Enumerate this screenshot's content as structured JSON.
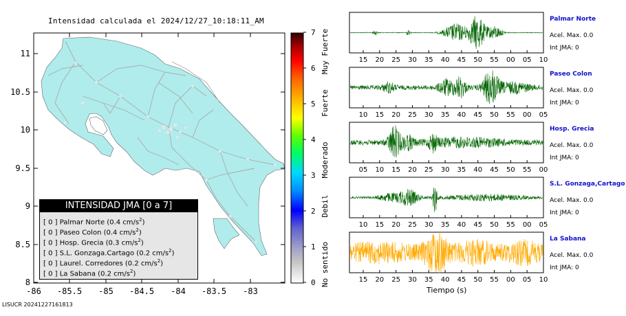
{
  "map": {
    "title": "Intensidad calculada el 2024/12/27_10:18:11_AM",
    "x_ticks": [
      "-86",
      "-85.5",
      "-85",
      "-84.5",
      "-84",
      "-83.5",
      "-83"
    ],
    "y_ticks": [
      "11",
      "10.5",
      "10",
      "9.5",
      "9",
      "8.5",
      "8"
    ],
    "land_color": "#b0ecec",
    "road_color": "#aaaaaa"
  },
  "colorbar": {
    "tick_labels": [
      "0",
      "1",
      "2",
      "3",
      "4",
      "5",
      "6",
      "7"
    ],
    "class_labels": [
      "No sentido",
      "Debil",
      "Moderado",
      "Fuerte",
      "Muy Fuerte"
    ]
  },
  "legend": {
    "header": "INTENSIDAD JMA [0 a 7]",
    "items": [
      {
        "text": "[ 0 ]  Palmar Norte (0.4 cm/s",
        "sup": "2",
        "close": ")"
      },
      {
        "text": "[ 0 ]  Paseo Colon (0.4 cm/s",
        "sup": "2",
        "close": ")"
      },
      {
        "text": "[ 0 ]  Hosp. Grecia (0.3 cm/s",
        "sup": "2",
        "close": ")"
      },
      {
        "text": "[ 0 ]  S.L. Gonzaga.Cartago (0.2 cm/s",
        "sup": "2",
        "close": ")"
      },
      {
        "text": "[ 0 ]  Laurel. Corredores (0.2 cm/s",
        "sup": "2",
        "close": ")"
      },
      {
        "text": "[ 0 ]  La Sabana (0.2 cm/s",
        "sup": "2",
        "close": ")"
      }
    ]
  },
  "footer": "LISUCR 20241227161813",
  "time_axis_label": "Tiempo (s)",
  "stations": [
    {
      "name": "Palmar Norte",
      "acel": "Acel. Max. 0.0",
      "int": "Int JMA: 0",
      "color": "#006400",
      "ticks": [
        "15",
        "20",
        "25",
        "30",
        "35",
        "40",
        "45",
        "50",
        "55",
        "00",
        "05",
        "10"
      ]
    },
    {
      "name": "Paseo Colon",
      "acel": "Acel. Max. 0.0",
      "int": "Int JMA: 0",
      "color": "#006400",
      "ticks": [
        "10",
        "15",
        "20",
        "25",
        "30",
        "35",
        "40",
        "45",
        "50",
        "55",
        "00",
        "05"
      ]
    },
    {
      "name": "Hosp. Grecia",
      "acel": "Acel. Max. 0.0",
      "int": "Int JMA: 0",
      "color": "#006400",
      "ticks": [
        "05",
        "10",
        "15",
        "20",
        "25",
        "30",
        "35",
        "40",
        "45",
        "50",
        "55",
        "00"
      ]
    },
    {
      "name": "S.L. Gonzaga,Cartago",
      "acel": "Acel. Max. 0.0",
      "int": "Int JMA: 0",
      "color": "#006400",
      "ticks": [
        "10",
        "15",
        "20",
        "25",
        "30",
        "35",
        "40",
        "45",
        "50",
        "55",
        "00",
        "05"
      ]
    },
    {
      "name": "La Sabana",
      "acel": "Acel. Max. 0.0",
      "int": "Int JMA: 0",
      "color": "#ffaa00",
      "ticks": [
        "15",
        "20",
        "25",
        "30",
        "35",
        "40",
        "45",
        "50",
        "55",
        "00",
        "05",
        "10"
      ]
    }
  ],
  "chart_data": {
    "type": "map",
    "title": "Intensidad calculada el 2024/12/27_10:18:11_AM",
    "xlim": [
      -86,
      -82.6
    ],
    "ylim": [
      8,
      11.3
    ],
    "colorbar_range": [
      0,
      7
    ],
    "stations_intensity": [
      {
        "name": "Palmar Norte",
        "jma": 0,
        "pga_cm_s2": 0.4
      },
      {
        "name": "Paseo Colon",
        "jma": 0,
        "pga_cm_s2": 0.4
      },
      {
        "name": "Hosp. Grecia",
        "jma": 0,
        "pga_cm_s2": 0.3
      },
      {
        "name": "S.L. Gonzaga.Cartago",
        "jma": 0,
        "pga_cm_s2": 0.2
      },
      {
        "name": "Laurel. Corredores",
        "jma": 0,
        "pga_cm_s2": 0.2
      },
      {
        "name": "La Sabana",
        "jma": 0,
        "pga_cm_s2": 0.2
      }
    ]
  }
}
